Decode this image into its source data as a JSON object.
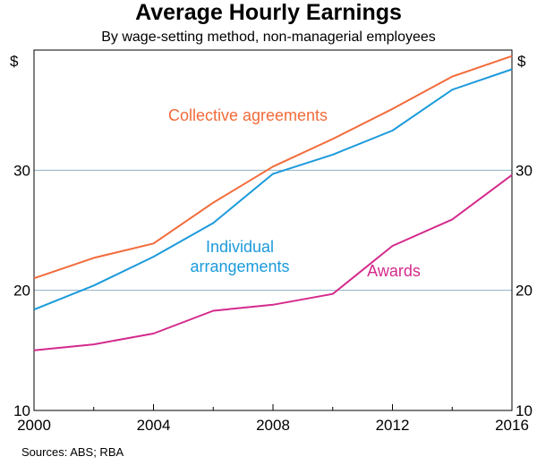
{
  "chart_data": {
    "type": "line",
    "title": "Average Hourly Earnings",
    "subtitle": "By wage-setting method, non-managerial employees",
    "y_unit_left": "$",
    "y_unit_right": "$",
    "xlim": [
      2000,
      2016
    ],
    "ylim": [
      10,
      40
    ],
    "x_ticks": [
      2000,
      2004,
      2008,
      2012,
      2016
    ],
    "x_tick_labels": [
      "2000",
      "2004",
      "2008",
      "2012",
      "2016"
    ],
    "y_ticks": [
      10,
      20,
      30
    ],
    "y_tick_labels": [
      "10",
      "20",
      "30"
    ],
    "gridlines_y": [
      20,
      30
    ],
    "x": [
      2000,
      2002,
      2004,
      2006,
      2008,
      2010,
      2012,
      2014,
      2016
    ],
    "series": [
      {
        "name": "Collective agreements",
        "label_lines": [
          "Collective agreements"
        ],
        "color": "#F26B3A",
        "values": [
          21.0,
          22.7,
          23.9,
          27.3,
          30.3,
          32.6,
          35.1,
          37.8,
          39.5
        ]
      },
      {
        "name": "Individual arrangements",
        "label_lines": [
          "Individual",
          "arrangements"
        ],
        "color": "#1B9ADB",
        "values": [
          18.4,
          20.4,
          22.8,
          25.6,
          29.7,
          31.3,
          33.3,
          36.7,
          38.4
        ]
      },
      {
        "name": "Awards",
        "label_lines": [
          "Awards"
        ],
        "color": "#D42A8C",
        "values": [
          15.0,
          15.5,
          16.4,
          18.3,
          18.8,
          19.7,
          23.7,
          25.9,
          29.6
        ]
      }
    ],
    "source": "Sources: ABS; RBA"
  }
}
